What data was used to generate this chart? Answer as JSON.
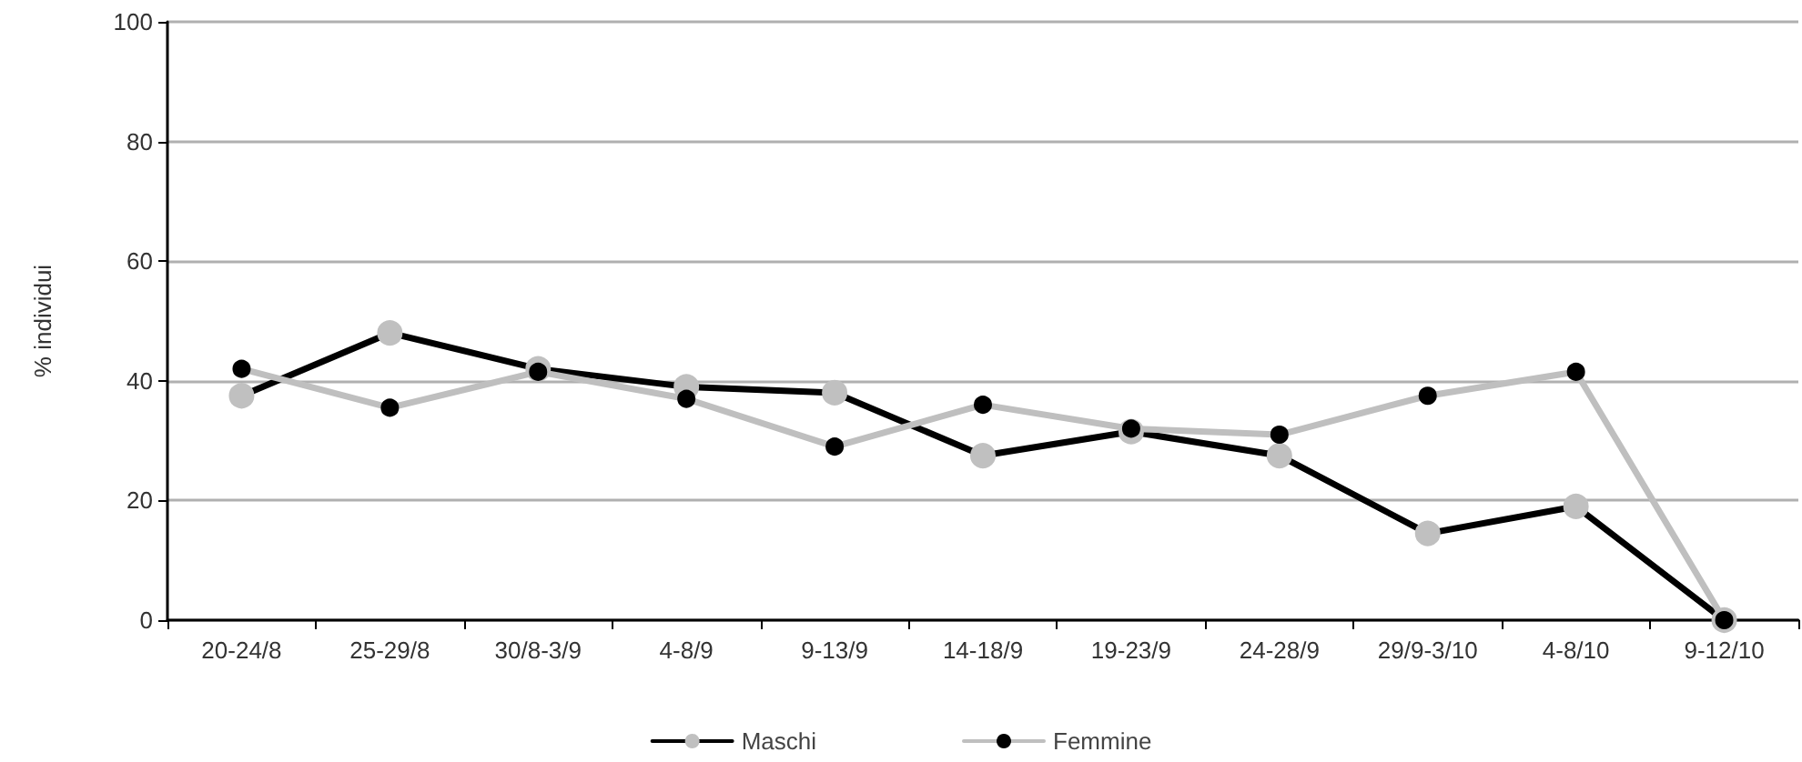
{
  "chart_data": {
    "type": "line",
    "ylabel": "% individui",
    "categories": [
      "20-24/8",
      "25-29/8",
      "30/8-3/9",
      "4-8/9",
      "9-13/9",
      "14-18/9",
      "19-23/9",
      "24-28/9",
      "29/9-3/10",
      "4-8/10",
      "9-12/10"
    ],
    "series": [
      {
        "name": "Maschi",
        "color": "#000000",
        "colors": [
          "#c0c0c0",
          "#c0c0c0",
          "#c0c0c0",
          "#c0c0c0",
          "#c0c0c0",
          "#c0c0c0",
          "#c0c0c0",
          "#c0c0c0",
          "#c0c0c0",
          "#c0c0c0",
          "#c0c0c0"
        ],
        "values": [
          37.5,
          48,
          42,
          39,
          38,
          27.5,
          31.5,
          27.5,
          14.5,
          19,
          0
        ]
      },
      {
        "name": "Femmine",
        "color": "#bfbfbf",
        "colors": [
          "#000000",
          "#000000",
          "#000000",
          "#000000",
          "#000000",
          "#000000",
          "#000000",
          "#000000",
          "#000000",
          "#000000",
          "#000000"
        ],
        "values": [
          42,
          35.5,
          41.5,
          37,
          29,
          36,
          32,
          31,
          37.5,
          41.5,
          0
        ]
      }
    ],
    "ylim": [
      0,
      100
    ],
    "yticks": [
      0,
      20,
      40,
      60,
      80,
      100
    ],
    "grid": "y",
    "legend": "bottom",
    "marker": "circle",
    "line_style": "solid"
  }
}
